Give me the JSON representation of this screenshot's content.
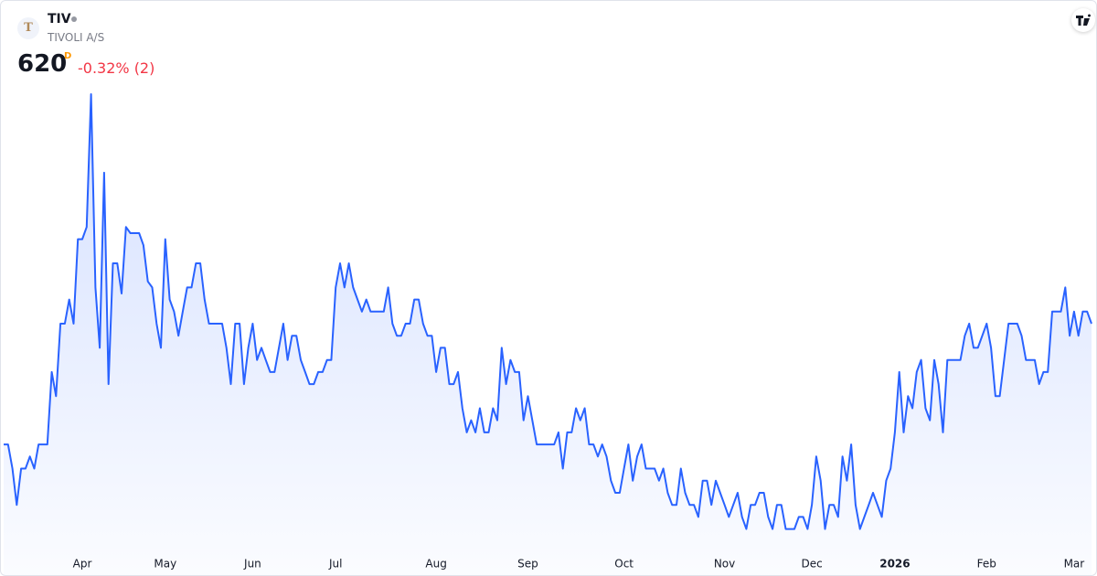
{
  "header": {
    "logo": "T",
    "symbol": "TIV",
    "name": "TIVOLI A/S",
    "last_price": 620,
    "interval": "D",
    "change": "-0.32% (2)"
  },
  "chart_data": {
    "type": "line",
    "color": "#2962ff",
    "fill": true,
    "series": [
      {
        "name": "TIV",
        "color": "#2962ff",
        "values": [
          600,
          600,
          596,
          590,
          596,
          596,
          598,
          596,
          600,
          600,
          600,
          612,
          608,
          620,
          620,
          624,
          620,
          634,
          634,
          636,
          658,
          626,
          616,
          645,
          610,
          630,
          630,
          625,
          636,
          635,
          635,
          635,
          633,
          627,
          626,
          620,
          616,
          634,
          624,
          622,
          618,
          622,
          626,
          626,
          630,
          630,
          624,
          620,
          620,
          620,
          620,
          616,
          610,
          620,
          620,
          610,
          616,
          620,
          614,
          616,
          614,
          612,
          612,
          616,
          620,
          614,
          618,
          618,
          614,
          612,
          610,
          610,
          612,
          612,
          614,
          614,
          626,
          630,
          626,
          630,
          626,
          624,
          622,
          624,
          622,
          622,
          622,
          622,
          626,
          620,
          618,
          618,
          620,
          620,
          624,
          624,
          620,
          618,
          618,
          612,
          616,
          616,
          610,
          610,
          612,
          606,
          602,
          604,
          602,
          606,
          602,
          602,
          606,
          604,
          616,
          610,
          614,
          612,
          612,
          604,
          608,
          604,
          600,
          600,
          600,
          600,
          600,
          602,
          596,
          602,
          602,
          606,
          604,
          606,
          600,
          600,
          598,
          600,
          598,
          594,
          592,
          592,
          596,
          600,
          594,
          598,
          600,
          596,
          596,
          596,
          594,
          596,
          592,
          590,
          590,
          596,
          592,
          590,
          590,
          588,
          594,
          594,
          590,
          594,
          592,
          590,
          588,
          590,
          592,
          588,
          586,
          590,
          590,
          592,
          592,
          588,
          586,
          590,
          590,
          586,
          586,
          586,
          588,
          588,
          586,
          590,
          598,
          594,
          586,
          590,
          590,
          588,
          598,
          594,
          600,
          590,
          586,
          588,
          590,
          592,
          590,
          588,
          594,
          596,
          602,
          612,
          602,
          608,
          606,
          612,
          614,
          606,
          604,
          614,
          610,
          602,
          614,
          614,
          614,
          614,
          618,
          620,
          616,
          616,
          618,
          620,
          616,
          608,
          608,
          614,
          620,
          620,
          620,
          618,
          614,
          614,
          614,
          610,
          612,
          612,
          622,
          622,
          622,
          626,
          618,
          622,
          618,
          622,
          622,
          620
        ]
      }
    ],
    "ylim": [
      582,
      668
    ],
    "xticks": [
      {
        "value": 18,
        "label": "Apr"
      },
      {
        "value": 37,
        "label": "May"
      },
      {
        "value": 57,
        "label": "Jun"
      },
      {
        "value": 76,
        "label": "Jul"
      },
      {
        "value": 99,
        "label": "Aug"
      },
      {
        "value": 120,
        "label": "Sep"
      },
      {
        "value": 142,
        "label": "Oct"
      },
      {
        "value": 165,
        "label": "Nov"
      },
      {
        "value": 185,
        "label": "Dec"
      },
      {
        "value": 204,
        "label": "2026"
      },
      {
        "value": 225,
        "label": "Feb"
      },
      {
        "value": 245,
        "label": "Mar"
      }
    ]
  }
}
